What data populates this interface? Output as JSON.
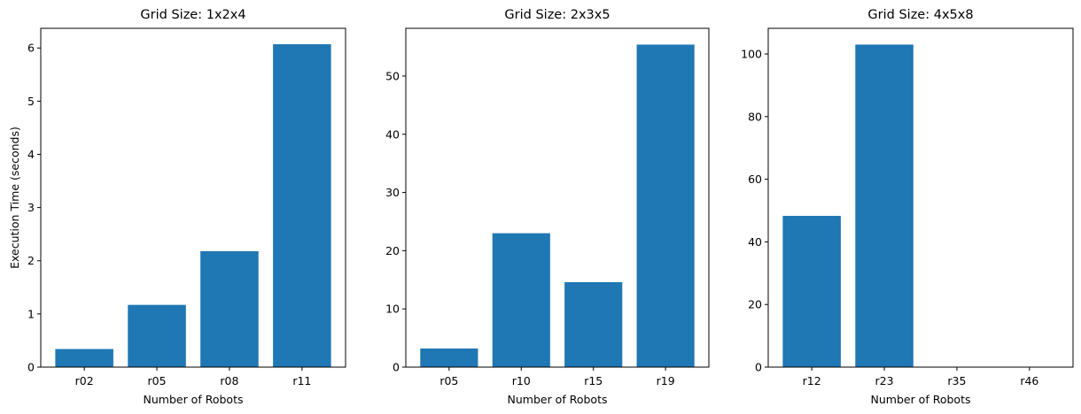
{
  "chart_data": [
    {
      "type": "bar",
      "title": "Grid Size: 1x2x4",
      "xlabel": "Number of Robots",
      "ylabel": "Execution Time (seconds)",
      "categories": [
        "r02",
        "r05",
        "r08",
        "r11"
      ],
      "values": [
        0.34,
        1.17,
        2.18,
        6.07
      ],
      "ylim": [
        0,
        6.37
      ],
      "yticks": [
        0,
        1,
        2,
        3,
        4,
        5,
        6
      ],
      "bar_color": "#1f77b4",
      "grid": false
    },
    {
      "type": "bar",
      "title": "Grid Size: 2x3x5",
      "xlabel": "Number of Robots",
      "ylabel": "",
      "categories": [
        "r05",
        "r10",
        "r15",
        "r19"
      ],
      "values": [
        3.2,
        23.0,
        14.6,
        55.4
      ],
      "ylim": [
        0,
        58.2
      ],
      "yticks": [
        0,
        10,
        20,
        30,
        40,
        50
      ],
      "bar_color": "#1f77b4",
      "grid": false
    },
    {
      "type": "bar",
      "title": "Grid Size: 4x5x8",
      "xlabel": "Number of Robots",
      "ylabel": "",
      "categories": [
        "r12",
        "r23",
        "r35",
        "r46"
      ],
      "values": [
        48.3,
        103.0,
        0,
        0
      ],
      "ylim": [
        0,
        108.2
      ],
      "yticks": [
        0,
        20,
        40,
        60,
        80,
        100
      ],
      "bar_color": "#1f77b4",
      "grid": false
    }
  ]
}
